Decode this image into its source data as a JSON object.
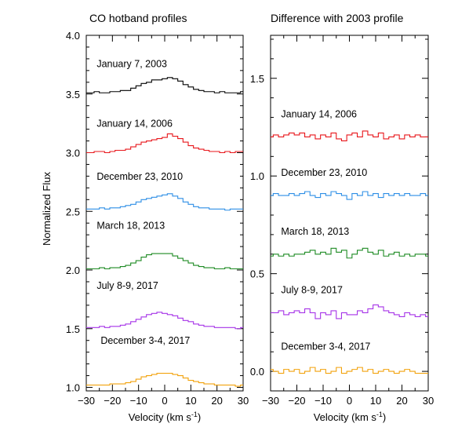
{
  "chart_data": [
    {
      "type": "line",
      "title": "CO hotband profiles",
      "xlabel": "Velocity (km s",
      "xlabel_sup": "-1",
      "xlabel_close": ")",
      "ylabel": "Normalized Flux",
      "xlim": [
        -30,
        30
      ],
      "ylim": [
        0.97,
        4.0
      ],
      "xticks": [
        -30,
        -20,
        -10,
        0,
        10,
        20,
        30
      ],
      "xtick_labels": [
        "−30",
        "−20",
        "−10",
        "0",
        "10",
        "20",
        "30"
      ],
      "yticks": [
        1.0,
        1.5,
        2.0,
        2.5,
        3.0,
        3.5,
        4.0
      ],
      "ytick_labels": [
        "1.0",
        "1.5",
        "2.0",
        "2.5",
        "3.0",
        "3.5",
        "4.0"
      ],
      "grid": false,
      "legend": "none",
      "x": [
        -30,
        -28,
        -26,
        -24,
        -22,
        -20,
        -18,
        -16,
        -14,
        -12,
        -10,
        -8,
        -6,
        -4,
        -2,
        0,
        2,
        4,
        6,
        8,
        10,
        12,
        14,
        16,
        18,
        20,
        22,
        24,
        26,
        28,
        30
      ],
      "series": [
        {
          "name": "January 7, 2003",
          "color": "#000000",
          "label_x": -26,
          "label_y": 3.73,
          "values": [
            3.51,
            3.51,
            3.52,
            3.51,
            3.51,
            3.52,
            3.52,
            3.53,
            3.53,
            3.55,
            3.57,
            3.59,
            3.6,
            3.62,
            3.62,
            3.63,
            3.64,
            3.63,
            3.61,
            3.58,
            3.56,
            3.54,
            3.53,
            3.52,
            3.52,
            3.51,
            3.52,
            3.51,
            3.51,
            3.51,
            3.52
          ]
        },
        {
          "name": "January 14, 2006",
          "color": "#e8161b",
          "label_x": -26,
          "label_y": 3.22,
          "values": [
            3.0,
            3.0,
            3.01,
            3.01,
            3.0,
            3.01,
            3.02,
            3.02,
            3.03,
            3.05,
            3.07,
            3.09,
            3.1,
            3.11,
            3.12,
            3.13,
            3.16,
            3.14,
            3.12,
            3.09,
            3.06,
            3.04,
            3.03,
            3.02,
            3.01,
            3.01,
            3.0,
            3.01,
            3.0,
            3.01,
            3.01
          ]
        },
        {
          "name": "December 23, 2010",
          "color": "#2e8fe6",
          "label_x": -26,
          "label_y": 2.77,
          "values": [
            2.52,
            2.52,
            2.52,
            2.53,
            2.52,
            2.53,
            2.53,
            2.54,
            2.55,
            2.56,
            2.58,
            2.6,
            2.61,
            2.62,
            2.63,
            2.64,
            2.65,
            2.63,
            2.61,
            2.58,
            2.56,
            2.54,
            2.53,
            2.53,
            2.52,
            2.52,
            2.52,
            2.51,
            2.52,
            2.52,
            2.52
          ]
        },
        {
          "name": "March 18, 2013",
          "color": "#1c8a22",
          "label_x": -26,
          "label_y": 2.35,
          "values": [
            2.01,
            2.01,
            2.01,
            2.02,
            2.01,
            2.02,
            2.02,
            2.03,
            2.04,
            2.06,
            2.08,
            2.11,
            2.13,
            2.14,
            2.14,
            2.14,
            2.14,
            2.12,
            2.1,
            2.08,
            2.06,
            2.04,
            2.03,
            2.02,
            2.02,
            2.01,
            2.01,
            2.02,
            2.01,
            2.01,
            2.01
          ]
        },
        {
          "name": "July 8-9, 2017",
          "color": "#a633e8",
          "label_x": -26,
          "label_y": 1.84,
          "values": [
            1.51,
            1.51,
            1.51,
            1.52,
            1.51,
            1.52,
            1.52,
            1.53,
            1.54,
            1.56,
            1.58,
            1.6,
            1.62,
            1.63,
            1.64,
            1.63,
            1.62,
            1.61,
            1.59,
            1.57,
            1.56,
            1.54,
            1.53,
            1.52,
            1.52,
            1.51,
            1.51,
            1.51,
            1.51,
            1.5,
            1.51
          ]
        },
        {
          "name": "December 3-4, 2017",
          "color": "#f2a20c",
          "label_x": -24.5,
          "label_y": 1.37,
          "values": [
            1.02,
            1.02,
            1.02,
            1.02,
            1.02,
            1.03,
            1.03,
            1.03,
            1.04,
            1.05,
            1.07,
            1.09,
            1.1,
            1.11,
            1.12,
            1.12,
            1.12,
            1.11,
            1.1,
            1.08,
            1.06,
            1.05,
            1.04,
            1.03,
            1.03,
            1.02,
            1.02,
            1.02,
            1.02,
            1.01,
            1.02
          ]
        }
      ]
    },
    {
      "type": "line",
      "title": "Difference with 2003 profile",
      "xlabel": "Velocity (km s",
      "xlabel_sup": "-1",
      "xlabel_close": ")",
      "ylabel": "",
      "xlim": [
        -30,
        30
      ],
      "ylim": [
        -0.1,
        1.72
      ],
      "xticks": [
        -30,
        -20,
        -10,
        0,
        10,
        20,
        30
      ],
      "xtick_labels": [
        "−30",
        "−20",
        "−10",
        "0",
        "10",
        "20",
        "30"
      ],
      "yticks": [
        0.0,
        0.5,
        1.0,
        1.5
      ],
      "ytick_labels": [
        "0.0",
        "0.5",
        "1.0",
        "1.5"
      ],
      "grid": false,
      "legend": "none",
      "x": [
        -30,
        -28,
        -26,
        -24,
        -22,
        -20,
        -18,
        -16,
        -14,
        -12,
        -10,
        -8,
        -6,
        -4,
        -2,
        0,
        2,
        4,
        6,
        8,
        10,
        12,
        14,
        16,
        18,
        20,
        22,
        24,
        26,
        28,
        30
      ],
      "series": [
        {
          "name": "January 14, 2006",
          "color": "#e8161b",
          "label_x": -26,
          "label_y": 1.3,
          "values": [
            1.2,
            1.21,
            1.2,
            1.21,
            1.22,
            1.21,
            1.22,
            1.2,
            1.21,
            1.19,
            1.21,
            1.2,
            1.22,
            1.19,
            1.18,
            1.21,
            1.22,
            1.2,
            1.23,
            1.21,
            1.2,
            1.22,
            1.19,
            1.2,
            1.21,
            1.19,
            1.21,
            1.2,
            1.21,
            1.2,
            1.2
          ]
        },
        {
          "name": "December 23, 2010",
          "color": "#2e8fe6",
          "label_x": -26,
          "label_y": 1.0,
          "values": [
            0.9,
            0.91,
            0.9,
            0.9,
            0.91,
            0.9,
            0.91,
            0.92,
            0.9,
            0.89,
            0.91,
            0.9,
            0.92,
            0.91,
            0.9,
            0.88,
            0.91,
            0.9,
            0.92,
            0.9,
            0.91,
            0.89,
            0.91,
            0.9,
            0.91,
            0.9,
            0.91,
            0.9,
            0.9,
            0.91,
            0.9
          ]
        },
        {
          "name": "March 18, 2013",
          "color": "#1c8a22",
          "label_x": -26,
          "label_y": 0.7,
          "values": [
            0.59,
            0.6,
            0.59,
            0.6,
            0.59,
            0.6,
            0.6,
            0.61,
            0.62,
            0.6,
            0.61,
            0.6,
            0.63,
            0.61,
            0.62,
            0.58,
            0.6,
            0.62,
            0.63,
            0.61,
            0.6,
            0.62,
            0.59,
            0.6,
            0.61,
            0.59,
            0.6,
            0.59,
            0.6,
            0.6,
            0.59
          ]
        },
        {
          "name": "July 8-9, 2017",
          "color": "#a633e8",
          "label_x": -26,
          "label_y": 0.4,
          "values": [
            0.3,
            0.3,
            0.31,
            0.29,
            0.3,
            0.31,
            0.3,
            0.32,
            0.3,
            0.27,
            0.3,
            0.29,
            0.31,
            0.27,
            0.3,
            0.29,
            0.29,
            0.31,
            0.3,
            0.32,
            0.34,
            0.33,
            0.31,
            0.3,
            0.29,
            0.28,
            0.3,
            0.29,
            0.28,
            0.29,
            0.28
          ]
        },
        {
          "name": "December 3-4, 2017",
          "color": "#f2a20c",
          "label_x": -26,
          "label_y": 0.11,
          "values": [
            0.01,
            0.0,
            -0.01,
            0.01,
            0.0,
            0.01,
            -0.01,
            0.0,
            0.02,
            0.0,
            0.01,
            -0.01,
            0.0,
            0.02,
            -0.01,
            0.0,
            0.01,
            0.02,
            0.0,
            0.01,
            -0.01,
            0.0,
            0.01,
            0.0,
            -0.01,
            0.0,
            0.01,
            0.0,
            -0.01,
            -0.01,
            -0.01
          ]
        }
      ]
    }
  ]
}
